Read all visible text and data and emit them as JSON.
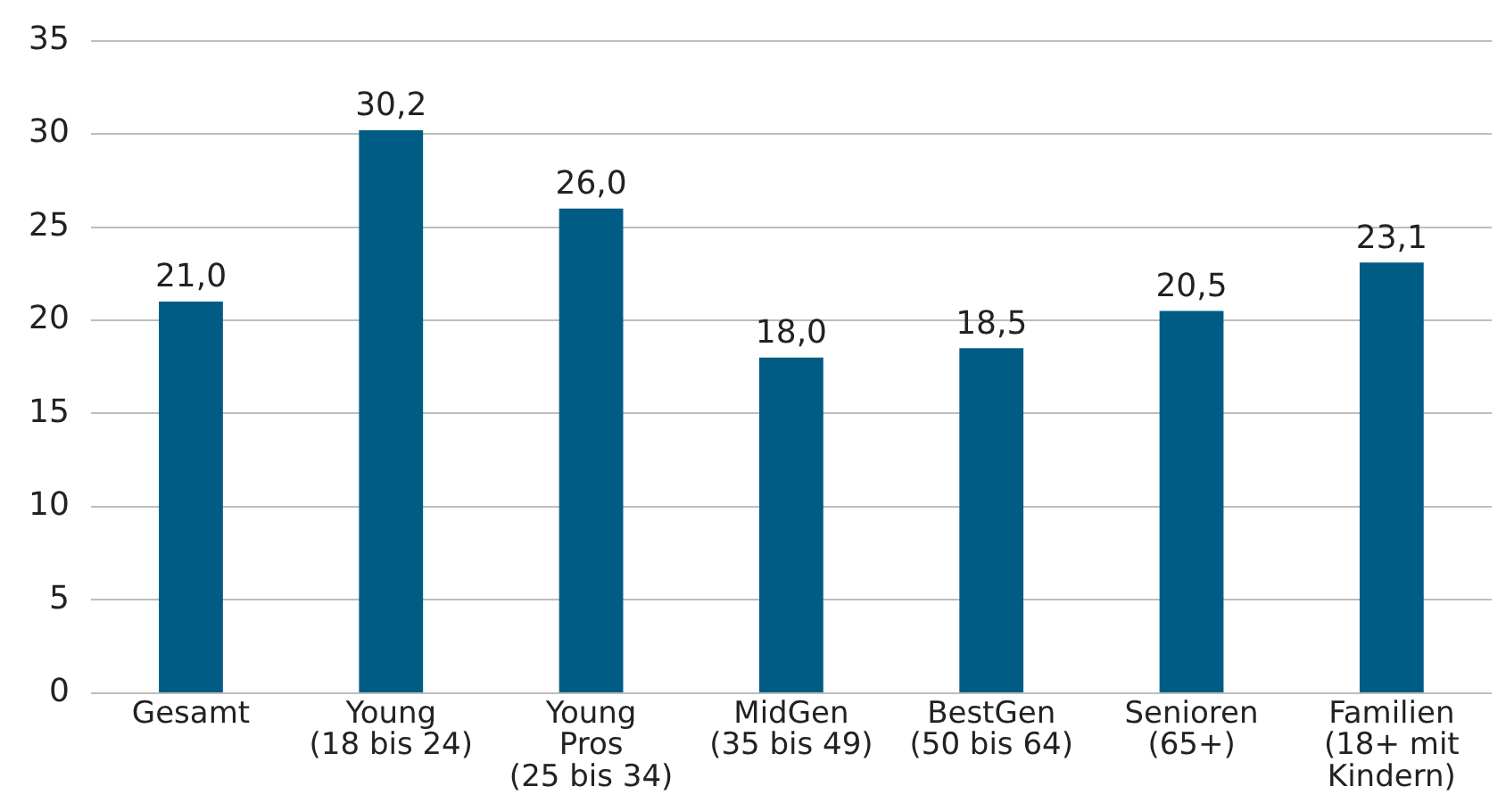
{
  "chart_data": {
    "type": "bar",
    "categories": [
      "Gesamt",
      "Young\n(18 bis 24)",
      "Young\nPros\n(25 bis 34)",
      "MidGen\n(35 bis 49)",
      "BestGen\n(50 bis 64)",
      "Senioren\n(65+)",
      "Familien\n(18+ mit\nKindern)"
    ],
    "values": [
      21.0,
      30.2,
      26.0,
      18.0,
      18.5,
      20.5,
      23.1
    ],
    "value_labels": [
      "21,0",
      "30,2",
      "26,0",
      "18,0",
      "18,5",
      "20,5",
      "23,1"
    ],
    "color": "#005b85",
    "ylim": [
      0,
      35
    ],
    "yticks": [
      0,
      5,
      10,
      15,
      20,
      25,
      30,
      35
    ],
    "grid": "y",
    "legend": false
  }
}
